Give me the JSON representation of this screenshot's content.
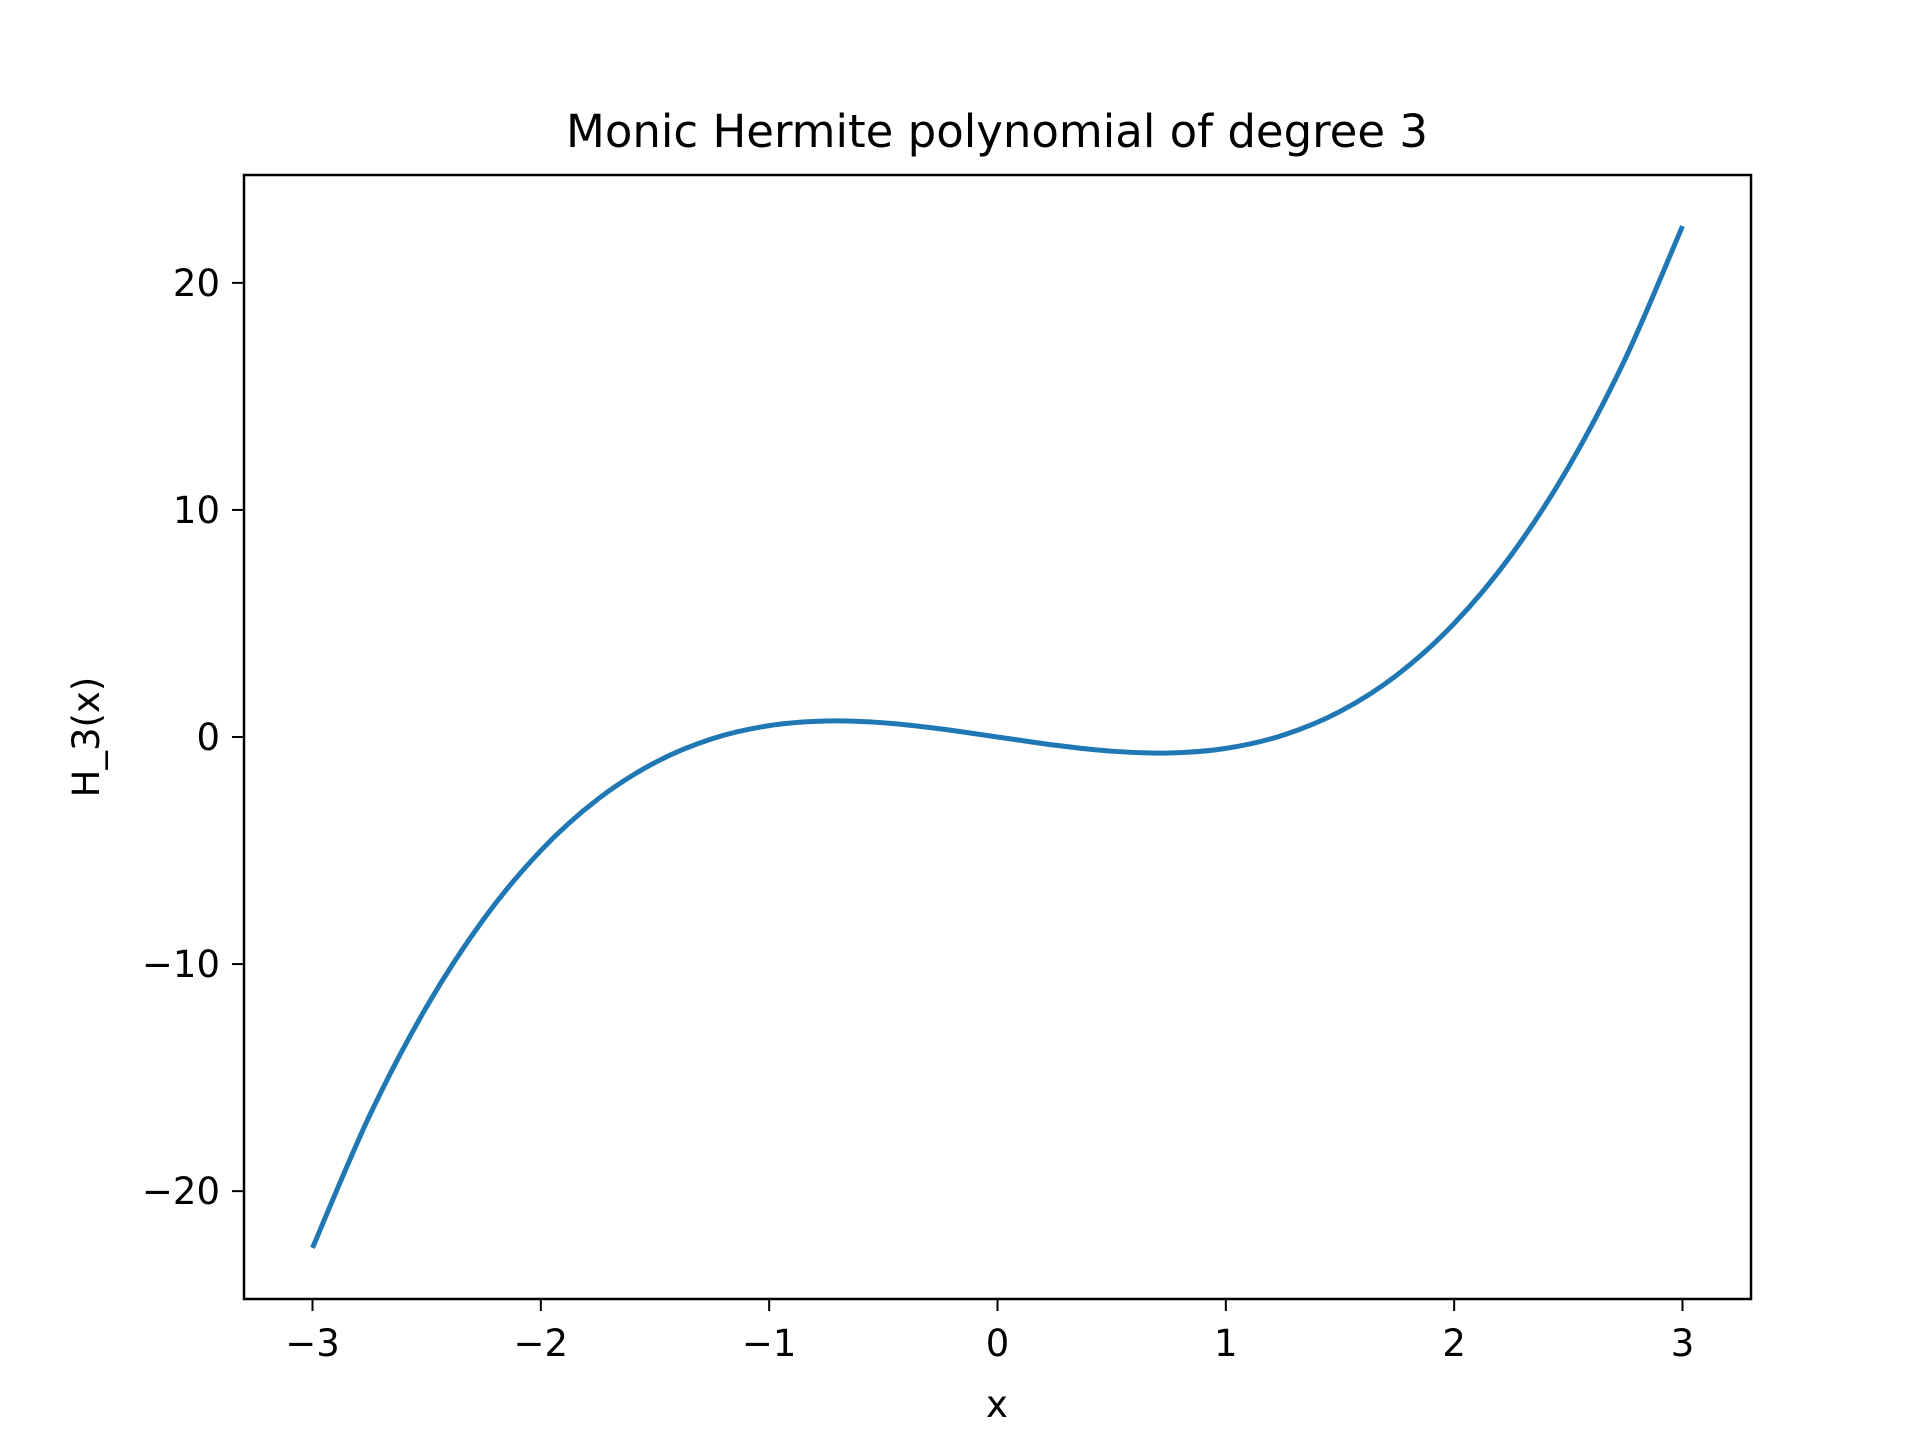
{
  "chart_data": {
    "type": "line",
    "title": "Monic Hermite polynomial of degree 3",
    "xlabel": "x",
    "ylabel": "H_3(x)",
    "xlim": [
      -3.3,
      3.3
    ],
    "ylim": [
      -24.75,
      24.75
    ],
    "x_ticks": [
      {
        "value": -3,
        "label": "−3"
      },
      {
        "value": -2,
        "label": "−2"
      },
      {
        "value": -1,
        "label": "−1"
      },
      {
        "value": 0,
        "label": "0"
      },
      {
        "value": 1,
        "label": "1"
      },
      {
        "value": 2,
        "label": "2"
      },
      {
        "value": 3,
        "label": "3"
      }
    ],
    "y_ticks": [
      {
        "value": -20,
        "label": "−20"
      },
      {
        "value": -10,
        "label": "−10"
      },
      {
        "value": 0,
        "label": "0"
      },
      {
        "value": 10,
        "label": "10"
      },
      {
        "value": 20,
        "label": "20"
      }
    ],
    "grid": false,
    "legend": "none",
    "series": [
      {
        "color": "#1f77b4",
        "x": [
          -3.0,
          -2.75,
          -2.5,
          -2.25,
          -2.0,
          -1.75,
          -1.5,
          -1.25,
          -1.0,
          -0.75,
          -0.5,
          -0.25,
          0.0,
          0.25,
          0.5,
          0.75,
          1.0,
          1.25,
          1.5,
          1.75,
          2.0,
          2.25,
          2.5,
          2.75,
          3.0
        ],
        "y": [
          -22.5,
          -16.672,
          -11.875,
          -8.016,
          -5.0,
          -2.734,
          -1.125,
          -0.078,
          0.5,
          0.703,
          0.625,
          0.359,
          0.0,
          -0.359,
          -0.625,
          -0.703,
          -0.5,
          0.078,
          1.125,
          2.734,
          5.0,
          8.016,
          11.875,
          16.672,
          22.5
        ]
      }
    ]
  }
}
